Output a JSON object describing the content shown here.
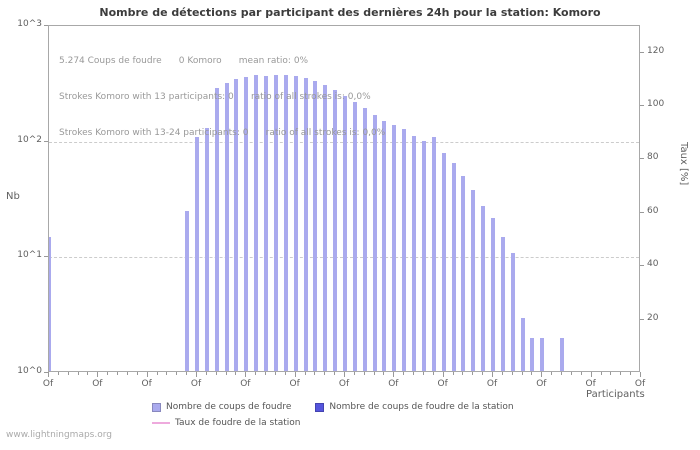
{
  "footer": "www.lightningmaps.org",
  "chart_data": {
    "type": "bar",
    "title": "Nombre de détections par participant des dernières 24h pour la station: Komoro",
    "annotations": [
      "5.274 Coups de foudre      0 Komoro      mean ratio: 0%",
      "Strokes Komoro with 13 participants: 0      ratio of all strokes is: 0,0%",
      "Strokes Komoro with 13-24 participants: 0      ratio of all strokes is: 0,0%"
    ],
    "x_axis": {
      "label": "Participants",
      "min": 0,
      "max": 60,
      "major_tick_every": 5,
      "tick_labels": [
        "Of",
        "Of",
        "Of",
        "Of",
        "Of",
        "Of",
        "Of",
        "Of",
        "Of",
        "Of",
        "Of",
        "Of",
        "Of"
      ]
    },
    "y_axis_left": {
      "label": "Nb",
      "scale": "log",
      "min": 1,
      "max": 1000,
      "tick_labels": [
        "10^0",
        "10^1",
        "10^2",
        "10^3"
      ]
    },
    "y_axis_right": {
      "label": "Taux [%]",
      "scale": "linear",
      "min": 0,
      "max": 130,
      "ticks": [
        20,
        40,
        60,
        80,
        100,
        120
      ]
    },
    "grid": "dashed-horizontal-decades",
    "legend_position": "bottom",
    "series": [
      {
        "name": "Nombre de coups de foudre",
        "type": "bar",
        "color": "#aaaaee",
        "points": [
          [
            0,
            15
          ],
          [
            14,
            25
          ],
          [
            15,
            110
          ],
          [
            16,
            130
          ],
          [
            17,
            290
          ],
          [
            18,
            320
          ],
          [
            19,
            350
          ],
          [
            20,
            365
          ],
          [
            21,
            375
          ],
          [
            22,
            370
          ],
          [
            23,
            375
          ],
          [
            24,
            380
          ],
          [
            25,
            370
          ],
          [
            26,
            355
          ],
          [
            27,
            335
          ],
          [
            28,
            310
          ],
          [
            29,
            280
          ],
          [
            30,
            250
          ],
          [
            31,
            220
          ],
          [
            32,
            195
          ],
          [
            33,
            170
          ],
          [
            34,
            152
          ],
          [
            35,
            140
          ],
          [
            36,
            128
          ],
          [
            37,
            112
          ],
          [
            38,
            102
          ],
          [
            39,
            110
          ],
          [
            40,
            80
          ],
          [
            41,
            65
          ],
          [
            42,
            50
          ],
          [
            43,
            38
          ],
          [
            44,
            28
          ],
          [
            45,
            22
          ],
          [
            46,
            15
          ],
          [
            47,
            11
          ],
          [
            48,
            3
          ],
          [
            49,
            2
          ],
          [
            50,
            2
          ],
          [
            52,
            2
          ]
        ]
      },
      {
        "name": "Nombre de coups de foudre de la station",
        "type": "bar",
        "color": "#5555dd",
        "points": []
      },
      {
        "name": "Taux de foudre de la station",
        "type": "line",
        "color": "#eeaadd",
        "points": []
      }
    ]
  }
}
